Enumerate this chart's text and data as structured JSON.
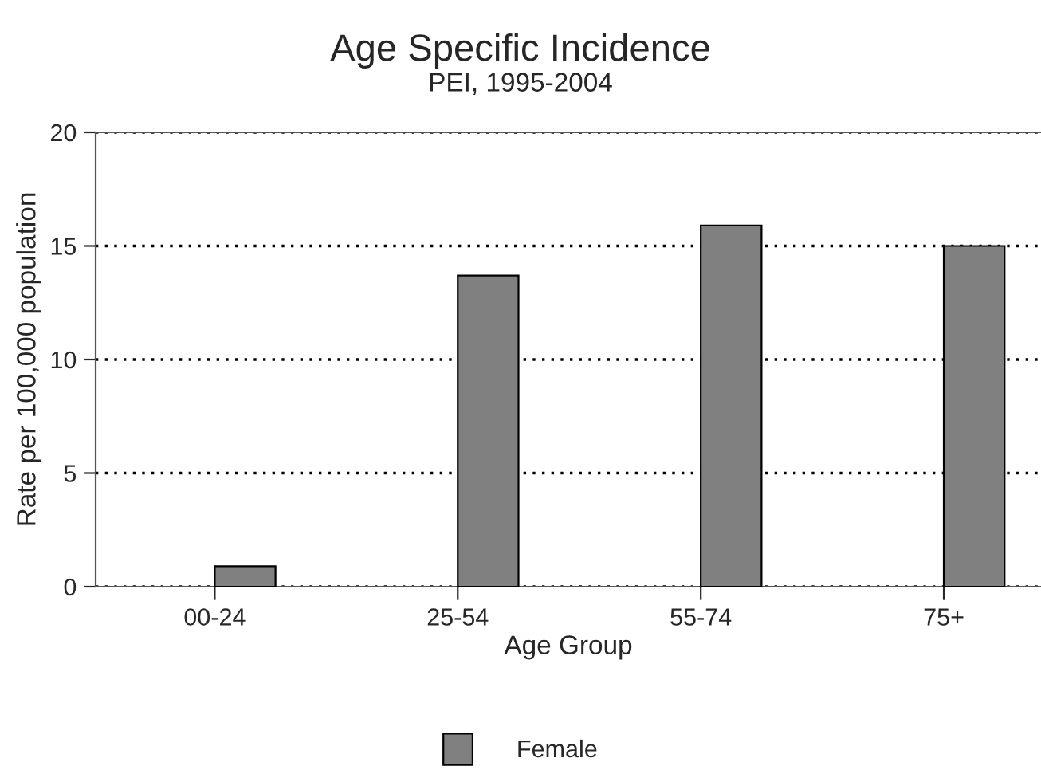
{
  "chart_data": {
    "type": "bar",
    "title": "Age Specific Incidence",
    "subtitle": "PEI, 1995-2004",
    "xlabel": "Age Group",
    "ylabel": "Rate per 100,000 population",
    "categories": [
      "00-24",
      "25-54",
      "55-74",
      "75+"
    ],
    "series": [
      {
        "name": "Female",
        "color": "#808080",
        "values": [
          0.9,
          13.7,
          15.9,
          15.0
        ]
      }
    ],
    "ylim": [
      0,
      20
    ],
    "yticks": [
      0,
      5,
      10,
      15,
      20
    ],
    "grid": "y",
    "legend": "bottom"
  }
}
